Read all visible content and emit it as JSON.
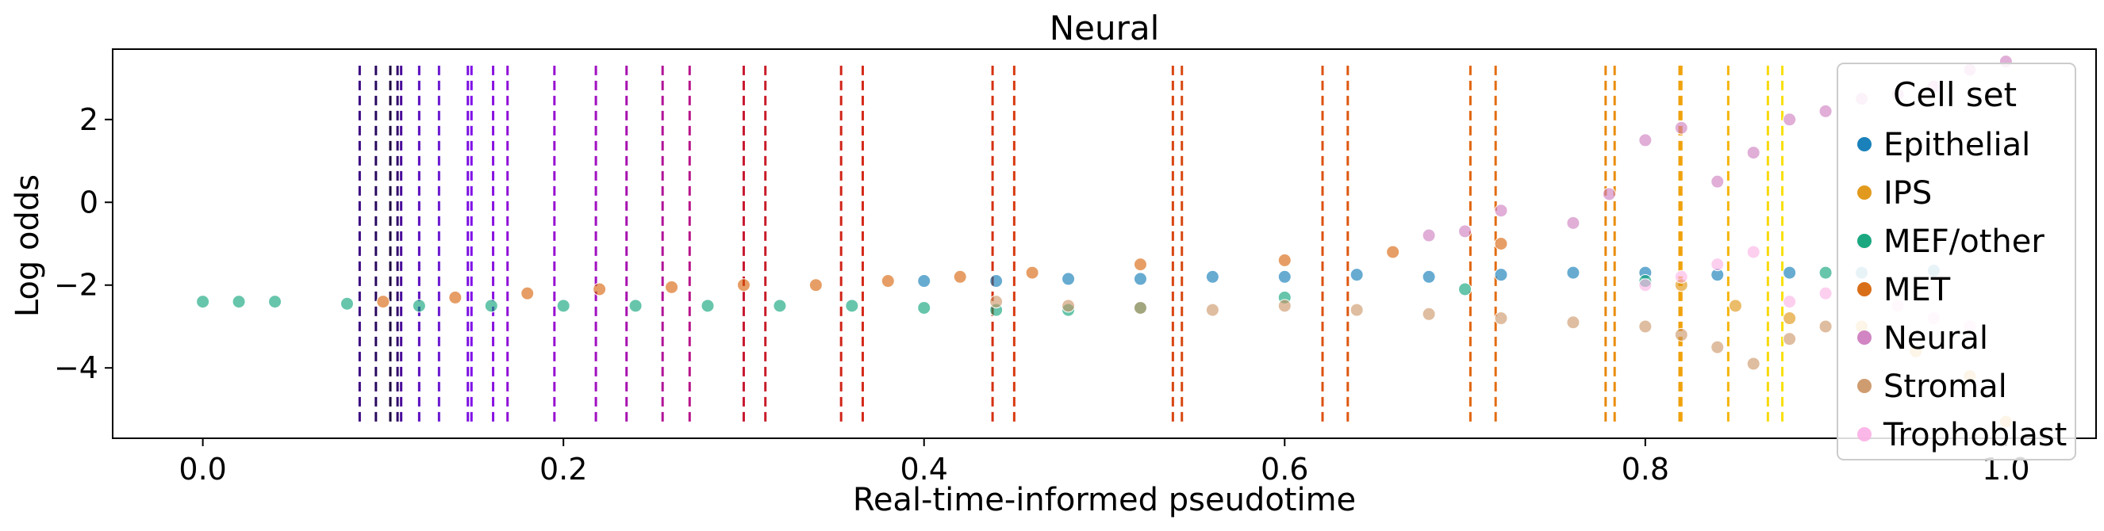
{
  "chart_data": {
    "type": "scatter",
    "title": "Neural",
    "xlabel": "Real-time-informed pseudotime",
    "ylabel": "Log odds",
    "xlim": [
      -0.05,
      1.05
    ],
    "ylim": [
      -5.7,
      3.7
    ],
    "xticks": [
      0.0,
      0.2,
      0.4,
      0.6,
      0.8,
      1.0
    ],
    "xtick_labels": [
      "0.0",
      "0.2",
      "0.4",
      "0.6",
      "0.8",
      "1.0"
    ],
    "yticks": [
      2,
      0,
      -2,
      -4
    ],
    "ytick_labels": [
      "2",
      "0",
      "−2",
      "−4"
    ],
    "grid": false,
    "legend": {
      "title": "Cell set",
      "placement": "right",
      "entries": [
        "Epithelial",
        "IPS",
        "MEF/other",
        "MET",
        "Neural",
        "Stromal",
        "Trophoblast"
      ]
    },
    "series": [
      {
        "name": "Epithelial",
        "color": "#0173b2",
        "x": [
          0.4,
          0.44,
          0.48,
          0.52,
          0.56,
          0.6,
          0.64,
          0.68,
          0.72,
          0.76,
          0.8,
          0.84,
          0.88,
          0.92,
          0.96
        ],
        "y": [
          -1.9,
          -1.9,
          -1.85,
          -1.85,
          -1.8,
          -1.8,
          -1.75,
          -1.8,
          -1.75,
          -1.7,
          -1.7,
          -1.75,
          -1.7,
          -1.7,
          -1.65
        ]
      },
      {
        "name": "IPS",
        "color": "#de8f05",
        "x": [
          0.82,
          0.85,
          0.88,
          0.92,
          0.95,
          0.98,
          1.0
        ],
        "y": [
          -2.0,
          -2.5,
          -2.8,
          -3.0,
          -3.6,
          -4.2,
          -5.3
        ]
      },
      {
        "name": "MEF/other",
        "color": "#029e73",
        "x": [
          0.0,
          0.02,
          0.04,
          0.08,
          0.12,
          0.16,
          0.2,
          0.24,
          0.28,
          0.32,
          0.36,
          0.4,
          0.44,
          0.48,
          0.52,
          0.6,
          0.7,
          0.8,
          0.9
        ],
        "y": [
          -2.4,
          -2.4,
          -2.4,
          -2.45,
          -2.5,
          -2.5,
          -2.5,
          -2.5,
          -2.5,
          -2.5,
          -2.5,
          -2.55,
          -2.6,
          -2.6,
          -2.55,
          -2.3,
          -2.1,
          -1.9,
          -1.7
        ]
      },
      {
        "name": "MET",
        "color": "#d55e00",
        "x": [
          0.1,
          0.14,
          0.18,
          0.22,
          0.26,
          0.3,
          0.34,
          0.38,
          0.42,
          0.46,
          0.52,
          0.6,
          0.66,
          0.72
        ],
        "y": [
          -2.4,
          -2.3,
          -2.2,
          -2.1,
          -2.05,
          -2.0,
          -2.0,
          -1.9,
          -1.8,
          -1.7,
          -1.5,
          -1.4,
          -1.2,
          -1.0
        ]
      },
      {
        "name": "Neural",
        "color": "#cc78bc",
        "x": [
          0.68,
          0.7,
          0.72,
          0.76,
          0.78,
          0.8,
          0.82,
          0.84,
          0.86,
          0.88,
          0.9,
          0.92,
          0.94,
          0.96,
          0.98,
          1.0
        ],
        "y": [
          -0.8,
          -0.7,
          -0.2,
          -0.5,
          0.2,
          1.5,
          1.8,
          0.5,
          1.2,
          2.0,
          2.2,
          2.5,
          2.6,
          2.8,
          3.2,
          3.4
        ]
      },
      {
        "name": "Stromal",
        "color": "#ca9161",
        "x": [
          0.44,
          0.48,
          0.52,
          0.56,
          0.6,
          0.64,
          0.68,
          0.72,
          0.76,
          0.8,
          0.82,
          0.84,
          0.86,
          0.88,
          0.9
        ],
        "y": [
          -2.4,
          -2.5,
          -2.55,
          -2.6,
          -2.5,
          -2.6,
          -2.7,
          -2.8,
          -2.9,
          -3.0,
          -3.2,
          -3.5,
          -3.9,
          -3.3,
          -3.0
        ]
      },
      {
        "name": "Trophoblast",
        "color": "#fbafe4",
        "x": [
          0.8,
          0.82,
          0.84,
          0.86,
          0.88,
          0.9,
          0.92,
          0.94,
          0.96,
          0.98
        ],
        "y": [
          -2.0,
          -1.8,
          -1.5,
          -1.2,
          -2.4,
          -2.2,
          -1.0,
          -2.5,
          -2.8,
          -3.0
        ]
      }
    ],
    "vertical_lines": {
      "style": "dashed",
      "ymin": -5.3,
      "ymax": 3.3,
      "x": [
        0.087,
        0.096,
        0.104,
        0.108,
        0.11,
        0.12,
        0.131,
        0.147,
        0.149,
        0.161,
        0.169,
        0.195,
        0.218,
        0.235,
        0.255,
        0.27,
        0.3,
        0.312,
        0.354,
        0.366,
        0.438,
        0.45,
        0.538,
        0.543,
        0.621,
        0.635,
        0.703,
        0.717,
        0.778,
        0.783,
        0.819,
        0.82,
        0.846,
        0.868,
        0.876
      ],
      "colors": [
        "#3a0680",
        "#2a0a60",
        "#1c0540",
        "#30086a",
        "#4a0c9a",
        "#5c10c0",
        "#6a18d0",
        "#7a10e0",
        "#8010e8",
        "#8812e0",
        "#9010d8",
        "#9810d0",
        "#a010c0",
        "#a812b0",
        "#b01498",
        "#b8148a",
        "#c81830",
        "#c81c28",
        "#d02418",
        "#d42818",
        "#d43010",
        "#d83a10",
        "#d84410",
        "#d84810",
        "#dc5210",
        "#de5810",
        "#e06610",
        "#e26c10",
        "#e8880c",
        "#ea8e0c",
        "#eea00c",
        "#f0a40c",
        "#f4b40a",
        "#f8d80a",
        "#f8e00a"
      ]
    }
  }
}
